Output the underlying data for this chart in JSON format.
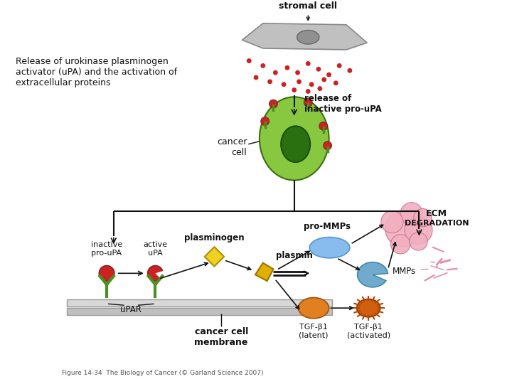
{
  "title_text": "Release of urokinase plasminogen\nactivator (uPA) and the activation of\nextracellular proteins",
  "caption": "Figure 14-34  The Biology of Cancer (© Garland Science 2007)",
  "labels": {
    "stromal_cell": "stromal cell",
    "release_of": "release of\ninactive pro-uPA",
    "cancer_cell": "cancer\ncell",
    "pro_mmps": "pro-MMPs",
    "ecm": "ECM",
    "degradation": "DEGRADATION",
    "mmps": "MMPs",
    "plasminogen": "plasminogen",
    "plasmin": "plasmin",
    "inactive_proupa": "inactive\npro-uPA",
    "active_upa": "active\nuPA",
    "upar": "uPAR",
    "cancer_cell_membrane": "cancer cell\nmembrane",
    "tgf_b1_latent": "TGF-β1\n(latent)",
    "tgf_b1_activated": "TGF-β1\n(activated)"
  },
  "colors": {
    "background": "#ffffff",
    "stromal_cell_body": "#c0c0c0",
    "stromal_cell_outline": "#888888",
    "stromal_nucleus": "#909090",
    "cancer_cell_outer": "#88c840",
    "cancer_cell_nucleus": "#2a7010",
    "red_dots": "#cc2222",
    "ecm_blob": "#f0b0c0",
    "ecm_outline": "#d07090",
    "pro_mmp_color": "#88bbee",
    "mmp_color": "#70aacc",
    "plasminogen_color": "#f0d020",
    "plasmin_color": "#e0b000",
    "tgf_latent_color": "#e08020",
    "tgf_activated_color": "#d06010",
    "fibrous_pink": "#e070a0",
    "receptor_green": "#4a9020",
    "receptor_red": "#cc2222",
    "receptor_red_dark": "#882222",
    "membrane_light": "#d8d8d8",
    "membrane_dark": "#c0c0c0",
    "arrow_color": "#111111",
    "text_color": "#111111"
  },
  "figsize": [
    7.2,
    5.4
  ],
  "dpi": 100
}
